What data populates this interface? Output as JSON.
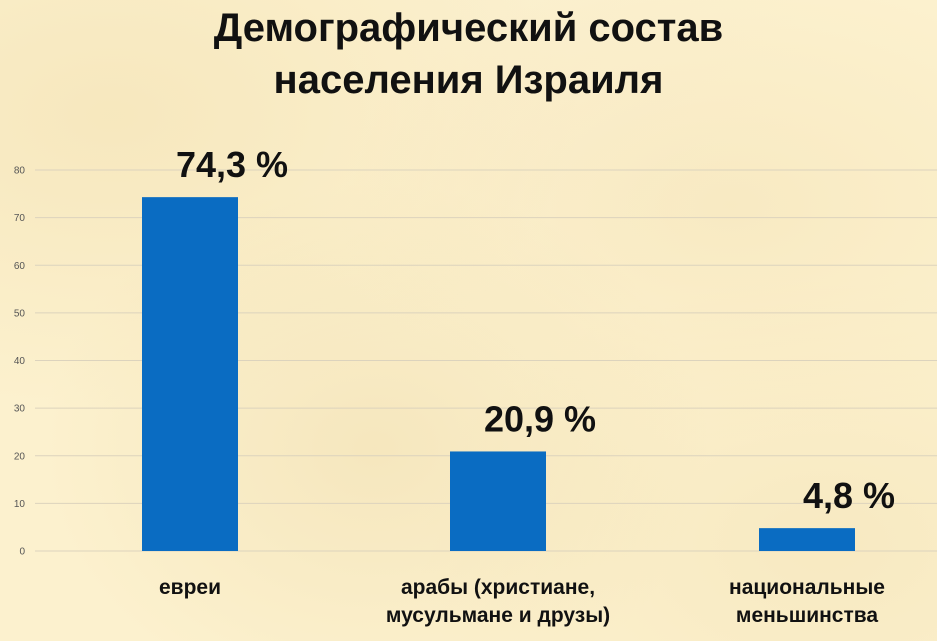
{
  "chart_data": {
    "type": "bar",
    "title_lines": [
      "Демографический состав",
      "населения Израиля"
    ],
    "categories": [
      [
        "евреи"
      ],
      [
        "арабы (христиане,",
        "мусульмане и друзы)"
      ],
      [
        "национальные",
        "меньшинства"
      ]
    ],
    "values": [
      74.3,
      20.9,
      4.8
    ],
    "data_labels": [
      "74,3 %",
      "20,9 %",
      "4,8 %"
    ],
    "y_ticks": [
      "0",
      "10",
      "20",
      "30",
      "40",
      "50",
      "60",
      "70",
      "80"
    ],
    "ylim": [
      0,
      80
    ],
    "grid": true,
    "legend": "none",
    "bar_color": "#0a6cc2",
    "grid_color": "#dcd3bd"
  }
}
